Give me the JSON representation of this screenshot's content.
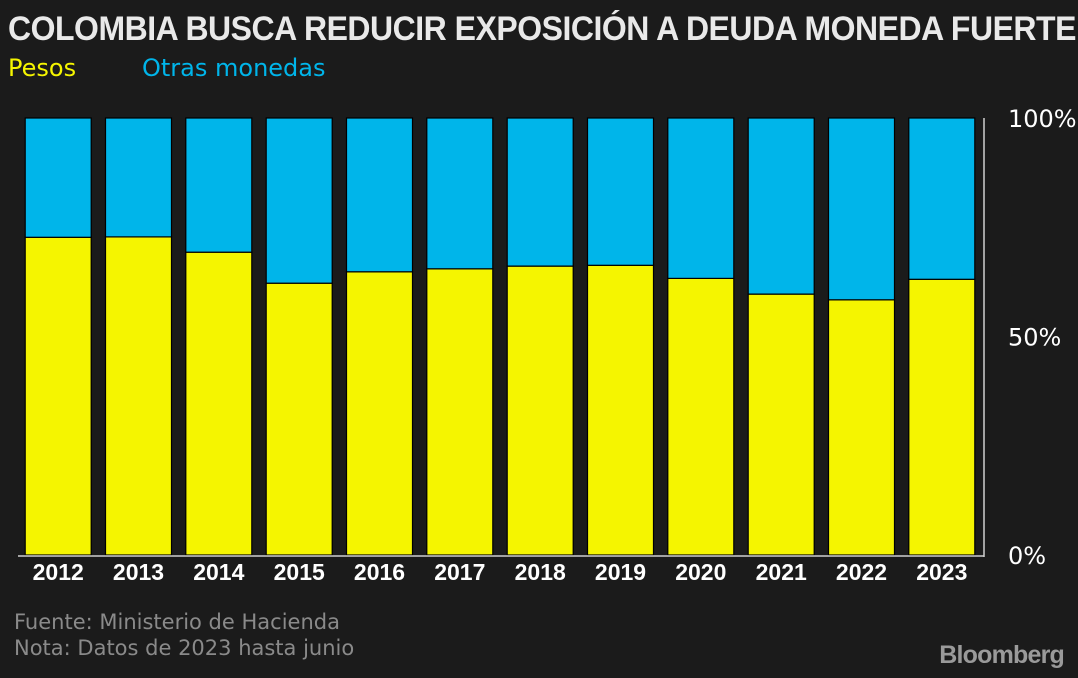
{
  "chart_data": {
    "type": "bar",
    "stacked": true,
    "title": "COLOMBIA BUSCA REDUCIR EXPOSICIÓN A DEUDA MONEDA FUERTE",
    "categories": [
      "2012",
      "2013",
      "2014",
      "2015",
      "2016",
      "2017",
      "2018",
      "2019",
      "2020",
      "2021",
      "2022",
      "2023"
    ],
    "series": [
      {
        "name": "Pesos",
        "color": "#f5f500",
        "values": [
          72.7,
          72.8,
          69.3,
          62.2,
          64.8,
          65.5,
          66.1,
          66.3,
          63.3,
          59.7,
          58.4,
          63.1
        ]
      },
      {
        "name": "Otras monedas",
        "color": "#00b5ea",
        "values": [
          27.3,
          27.2,
          30.7,
          37.8,
          35.2,
          34.5,
          33.9,
          33.7,
          36.7,
          40.3,
          41.6,
          36.9
        ]
      }
    ],
    "yticks": [
      "0%",
      "50%",
      "100%"
    ],
    "ylim": [
      0,
      100
    ],
    "xlabel": "",
    "ylabel": "",
    "legend": "top-left",
    "grid": false
  },
  "footer": {
    "source": "Fuente: Ministerio de Hacienda",
    "note": "Nota: Datos de 2023 hasta junio"
  },
  "brand": "Bloomberg"
}
